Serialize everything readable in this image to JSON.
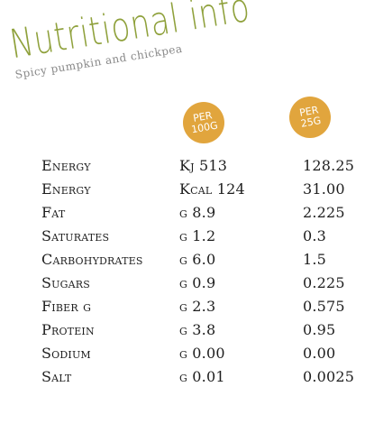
{
  "title": "Nutritional info",
  "subtitle": "Spicy pumpkin and chickpea",
  "badges": {
    "per_100g": "PER 100G",
    "per_25g": "PER 25G"
  },
  "colors": {
    "title_green": "#8fa13c",
    "badge_orange": "#e1a53d",
    "subtitle_grey": "#888888"
  },
  "rows": [
    {
      "label": "Energy",
      "per_100g": "Kj 513",
      "per_25g": "128.25"
    },
    {
      "label": "Energy",
      "per_100g": "Kcal 124",
      "per_25g": "31.00"
    },
    {
      "label": "Fat",
      "per_100g": "g 8.9",
      "per_25g": "2.225"
    },
    {
      "label": "Saturates",
      "per_100g": "g 1.2",
      "per_25g": "0.3"
    },
    {
      "label": "Carbohydrates",
      "per_100g": "g 6.0",
      "per_25g": "1.5"
    },
    {
      "label": "Sugars",
      "per_100g": "g 0.9",
      "per_25g": "0.225"
    },
    {
      "label": "Fiber g",
      "per_100g": "g 2.3",
      "per_25g": "0.575"
    },
    {
      "label": "Protein",
      "per_100g": "g 3.8",
      "per_25g": "0.95"
    },
    {
      "label": "Sodium",
      "per_100g": "g 0.00",
      "per_25g": "0.00"
    },
    {
      "label": "Salt",
      "per_100g": "g 0.01",
      "per_25g": "0.0025"
    }
  ]
}
